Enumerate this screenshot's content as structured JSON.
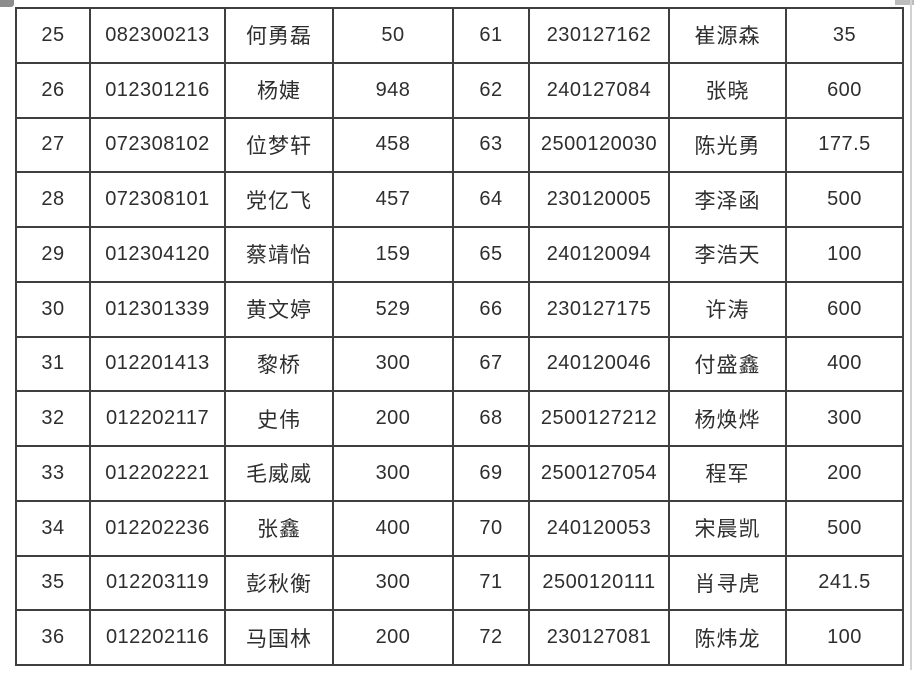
{
  "colors": {
    "border": "#3f3f3f",
    "text": "#2e2e2e",
    "background": "#ffffff"
  },
  "table": {
    "rows": [
      [
        "25",
        "082300213",
        "何勇磊",
        "50",
        "61",
        "230127162",
        "崔源森",
        "35"
      ],
      [
        "26",
        "012301216",
        "杨婕",
        "948",
        "62",
        "240127084",
        "张晓",
        "600"
      ],
      [
        "27",
        "072308102",
        "位梦轩",
        "458",
        "63",
        "2500120030",
        "陈光勇",
        "177.5"
      ],
      [
        "28",
        "072308101",
        "党亿飞",
        "457",
        "64",
        "230120005",
        "李泽函",
        "500"
      ],
      [
        "29",
        "012304120",
        "蔡靖怡",
        "159",
        "65",
        "240120094",
        "李浩天",
        "100"
      ],
      [
        "30",
        "012301339",
        "黄文婷",
        "529",
        "66",
        "230127175",
        "许涛",
        "600"
      ],
      [
        "31",
        "012201413",
        "黎桥",
        "300",
        "67",
        "240120046",
        "付盛鑫",
        "400"
      ],
      [
        "32",
        "012202117",
        "史伟",
        "200",
        "68",
        "2500127212",
        "杨焕烨",
        "300"
      ],
      [
        "33",
        "012202221",
        "毛威威",
        "300",
        "69",
        "2500127054",
        "程军",
        "200"
      ],
      [
        "34",
        "012202236",
        "张鑫",
        "400",
        "70",
        "240120053",
        "宋晨凯",
        "500"
      ],
      [
        "35",
        "012203119",
        "彭秋衡",
        "300",
        "71",
        "2500120111",
        "肖寻虎",
        "241.5"
      ],
      [
        "36",
        "012202116",
        "马国林",
        "200",
        "72",
        "230127081",
        "陈炜龙",
        "100"
      ]
    ]
  }
}
